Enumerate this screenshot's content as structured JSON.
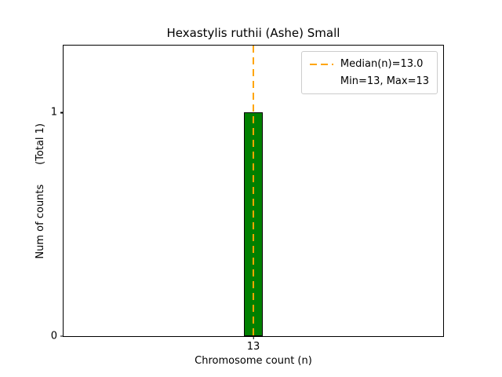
{
  "chart_data": {
    "type": "bar",
    "title": "Hexastylis ruthii (Ashe) Small",
    "xlabel": "Chromosome count (n)",
    "ylabel": "Num of counts      (Total 1)",
    "categories": [
      13
    ],
    "values": [
      1
    ],
    "bars": [
      {
        "x": 13,
        "count": 1
      }
    ],
    "bar_width": 0.1,
    "xlim": [
      12,
      14
    ],
    "ylim": [
      0,
      1.3
    ],
    "xticks": [
      "13"
    ],
    "yticks": [
      "0",
      "1"
    ],
    "median": 13.0,
    "min": 13,
    "max": 13,
    "grid": false,
    "legend": {
      "position": "upper right",
      "entries": [
        "Median(n)=13.0",
        "Min=13, Max=13"
      ]
    },
    "colors": {
      "bar_fill": "#008000",
      "bar_edge": "#000000",
      "median_line": "#FFA500",
      "axis": "#000000"
    }
  }
}
